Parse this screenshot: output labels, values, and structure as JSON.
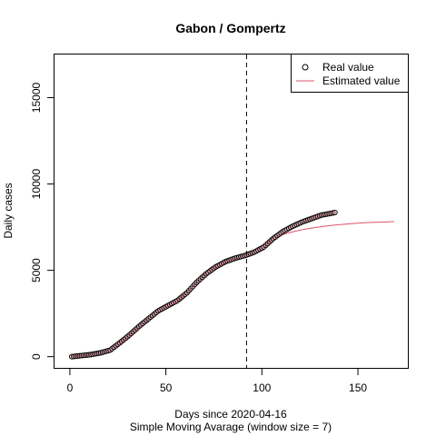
{
  "chart_data": {
    "type": "scatter",
    "title": "Gabon / Gompertz",
    "xlabel": "Days since 2020-04-16",
    "xlabel2": "Simple Moving Avarage (window size = 7)",
    "ylabel": "Daily cases",
    "xlim": [
      -8,
      176
    ],
    "ylim": [
      -650,
      17500
    ],
    "x_ticks": [
      0,
      50,
      100,
      150
    ],
    "y_ticks": [
      0,
      5000,
      10000,
      15000
    ],
    "vline_x": 92,
    "legend": {
      "position": "top-right",
      "entries": [
        {
          "label": "Real value",
          "marker": "circle",
          "color": "#000000"
        },
        {
          "label": "Estimated value",
          "marker": "line",
          "color": "#DF536B"
        }
      ]
    },
    "series": [
      {
        "name": "Real value",
        "kind": "points",
        "color": "#000000",
        "fill": "#F4A8B4",
        "x": [
          1,
          6,
          11,
          16,
          21,
          26,
          31,
          36,
          41,
          46,
          51,
          56,
          61,
          66,
          71,
          76,
          81,
          86,
          91,
          96,
          101,
          106,
          111,
          116,
          121,
          126,
          131,
          136,
          138
        ],
        "y": [
          0,
          60,
          120,
          220,
          380,
          800,
          1250,
          1750,
          2200,
          2650,
          2950,
          3250,
          3700,
          4300,
          4800,
          5200,
          5500,
          5700,
          5850,
          6050,
          6350,
          6850,
          7250,
          7550,
          7800,
          8000,
          8200,
          8300,
          8350
        ]
      },
      {
        "name": "Estimated value",
        "kind": "line",
        "color": "#DF536B",
        "x": [
          1,
          6,
          11,
          16,
          21,
          26,
          31,
          36,
          41,
          46,
          51,
          56,
          61,
          66,
          71,
          76,
          81,
          86,
          91,
          96,
          101,
          106,
          111,
          116,
          121,
          126,
          131,
          136,
          141,
          146,
          151,
          156,
          161,
          166,
          169
        ],
        "y": [
          0,
          60,
          120,
          220,
          380,
          800,
          1250,
          1750,
          2200,
          2650,
          2950,
          3250,
          3700,
          4300,
          4800,
          5200,
          5500,
          5700,
          5850,
          6050,
          6350,
          6900,
          7080,
          7230,
          7350,
          7450,
          7530,
          7600,
          7650,
          7700,
          7740,
          7770,
          7790,
          7810,
          7820
        ]
      }
    ]
  }
}
